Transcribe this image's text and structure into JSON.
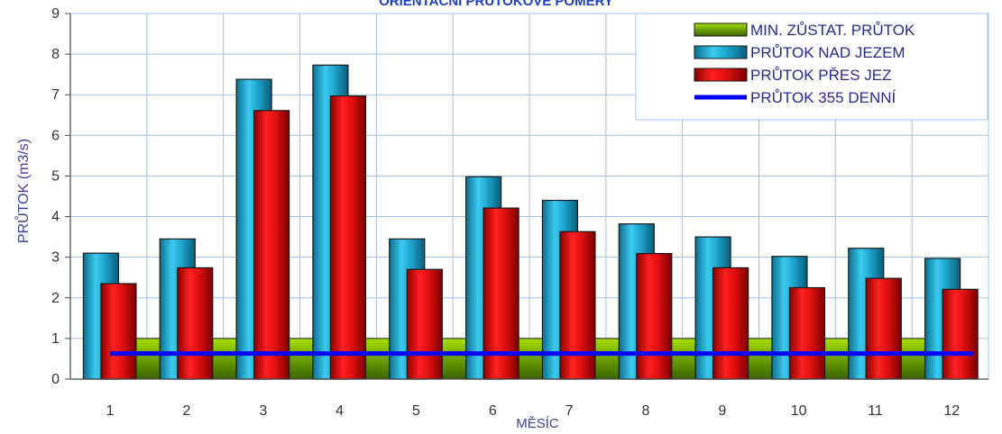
{
  "chart_data": {
    "type": "bar",
    "title": "ORIENTAČNÍ PRŮTOKOVÉ POMĚRY",
    "xlabel": "MĚSÍC",
    "ylabel": "PRŮTOK (m3/s)",
    "ylim": [
      0,
      9
    ],
    "yticks": [
      0,
      1,
      2,
      3,
      4,
      5,
      6,
      7,
      8,
      9
    ],
    "grid": true,
    "legend_position": "top-right",
    "categories": [
      "1",
      "2",
      "3",
      "4",
      "5",
      "6",
      "7",
      "8",
      "9",
      "10",
      "11",
      "12"
    ],
    "series": [
      {
        "name": "MIN. ZŮSTAT. PRŮTOK",
        "kind": "area-bar",
        "color": "#7cb800",
        "values": [
          1,
          1,
          1,
          1,
          1,
          1,
          1,
          1,
          1,
          1,
          1,
          1
        ]
      },
      {
        "name": "PRŮTOK NAD JEZEM",
        "kind": "bar",
        "color": "#1ea6cf",
        "values": [
          3.1,
          3.45,
          7.38,
          7.73,
          3.45,
          4.98,
          4.4,
          3.82,
          3.5,
          3.02,
          3.22,
          2.97
        ]
      },
      {
        "name": "PRŮTOK PŘES JEZ",
        "kind": "bar",
        "color": "#e01010",
        "values": [
          2.35,
          2.74,
          6.61,
          6.97,
          2.7,
          4.21,
          3.63,
          3.09,
          2.74,
          2.25,
          2.48,
          2.21
        ]
      },
      {
        "name": "PRŮTOK 355 DENNÍ",
        "kind": "line",
        "color": "#0000ff",
        "value": 0.63
      }
    ]
  }
}
